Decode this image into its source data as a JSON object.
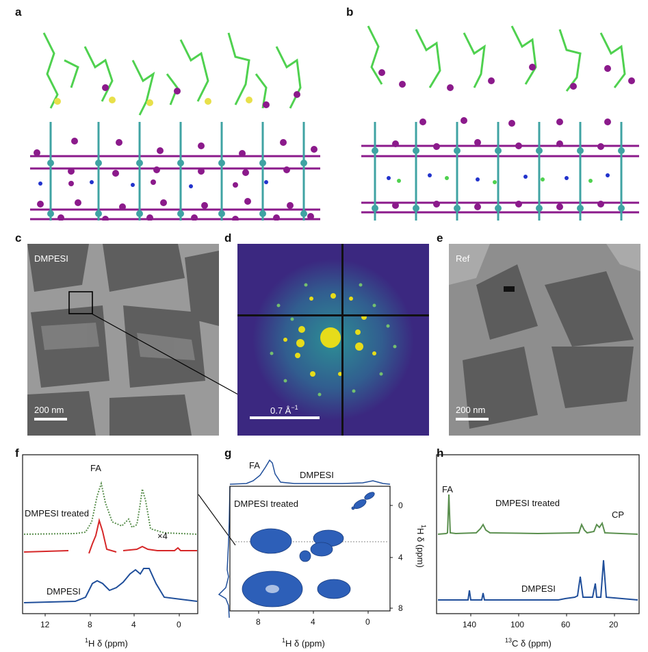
{
  "panels": {
    "a": {
      "letter": "a"
    },
    "b": {
      "letter": "b"
    },
    "c": {
      "letter": "c",
      "label": "DMPESI",
      "scalebar": "200 nm"
    },
    "d": {
      "letter": "d",
      "scalebar": "0.7 Å",
      "scalebar_sup": "−1"
    },
    "e": {
      "letter": "e",
      "label": "Ref",
      "scalebar": "200 nm"
    },
    "f": {
      "letter": "f",
      "traces": [
        "FA",
        "DMPESI treated",
        "DMPESI"
      ],
      "factor": "×4",
      "xticks": [
        "12",
        "8",
        "4",
        "0"
      ],
      "xlabel_sup": "1",
      "xlabel": "H δ (ppm)"
    },
    "g": {
      "letter": "g",
      "top_labels": [
        "FA",
        "DMPESI"
      ],
      "inset_label": "DMPESI treated",
      "xticks": [
        "8",
        "4",
        "0"
      ],
      "yticks": [
        "0",
        "4",
        "8"
      ],
      "xlabel_sup": "1",
      "xlabel": "H δ (ppm)",
      "ylabel_sup": "1",
      "ylabel": "H δ (ppm)"
    },
    "h": {
      "letter": "h",
      "traces": [
        "FA",
        "DMPESI treated",
        "CP",
        "DMPESI"
      ],
      "xticks": [
        "140",
        "100",
        "60",
        "20"
      ],
      "xlabel_sup": "13",
      "xlabel": "C δ (ppm)"
    }
  },
  "colors": {
    "green": "#5a8f4e",
    "red": "#d62728",
    "blue": "#1f4e9a",
    "atom_i": "#8b1a8b",
    "atom_pb": "#3fa3a3",
    "organic": "#4fd14f"
  }
}
